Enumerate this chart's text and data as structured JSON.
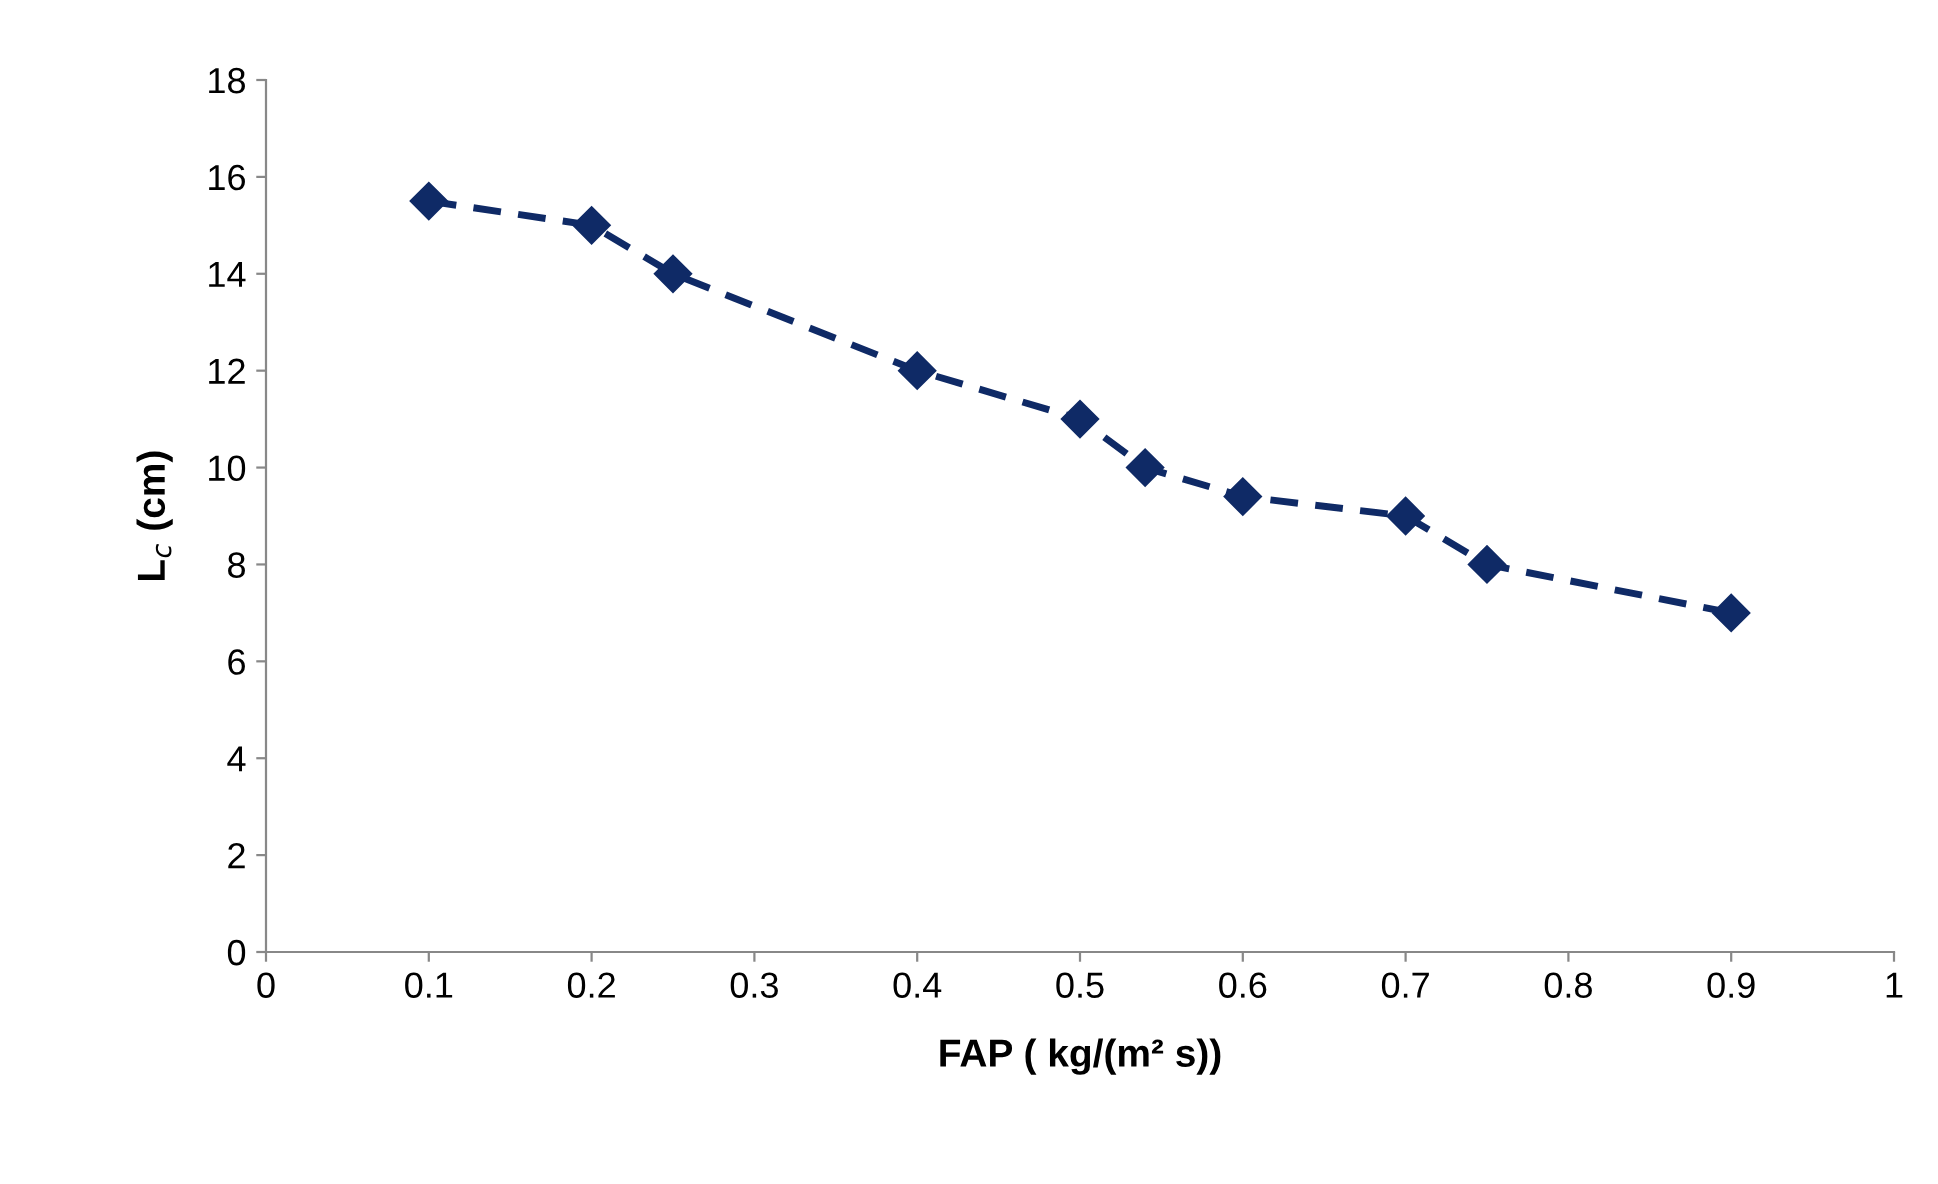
{
  "chart_data": {
    "type": "line",
    "xlabel": "FAP ( kg/(m² s))",
    "ylabel": "L$_{c}$ (cm)",
    "x": [
      0.1,
      0.2,
      0.25,
      0.4,
      0.5,
      0.54,
      0.6,
      0.7,
      0.75,
      0.9
    ],
    "series": [
      {
        "color": "#0f2a66",
        "values": [
          15.5,
          15,
          14,
          12,
          11,
          10,
          9.4,
          9,
          8,
          7
        ]
      }
    ],
    "xlim": [
      0,
      1
    ],
    "xticks": [
      0,
      0.1,
      0.2,
      0.3,
      0.4,
      0.5,
      0.6,
      0.7,
      0.8,
      0.9,
      1
    ],
    "ylim": [
      0,
      18
    ],
    "yticks": [
      0,
      2,
      4,
      6,
      8,
      10,
      12,
      14,
      16,
      18
    ],
    "grid": false,
    "legend": false,
    "marker": "diamond",
    "line_style": "dashed"
  }
}
